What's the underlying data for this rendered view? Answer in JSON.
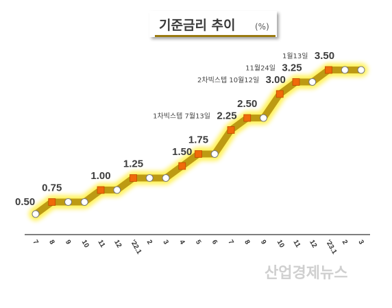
{
  "title": "기준금리 추이",
  "unit": "(%)",
  "watermark": "산업경제뉴스",
  "colors": {
    "line": "#bd9a13",
    "glow": "#fff04a",
    "hike_marker": "#f06a0a",
    "hold_marker": "#ffffff",
    "title_underline": "#9a7a10",
    "axis": "#333333"
  },
  "chart_data": {
    "type": "line",
    "title": "기준금리 추이",
    "ylabel": "(%)",
    "xlabel": "",
    "x": [
      "7",
      "8",
      "9",
      "10",
      "11",
      "12",
      "'22.1",
      "2",
      "3",
      "4",
      "5",
      "6",
      "7",
      "8",
      "9",
      "10",
      "11",
      "12",
      "'23.1",
      "2",
      "3"
    ],
    "values": [
      0.5,
      0.75,
      0.75,
      0.75,
      1.0,
      1.0,
      1.25,
      1.25,
      1.25,
      1.5,
      1.75,
      1.75,
      2.25,
      2.5,
      2.5,
      3.0,
      3.25,
      3.25,
      3.5,
      3.5,
      3.5
    ],
    "markers": [
      "hold",
      "hike",
      "hold",
      "hold",
      "hike",
      "hold",
      "hike",
      "hold",
      "hold",
      "hike",
      "hike",
      "hold",
      "hike",
      "hike",
      "hold",
      "hike",
      "hike",
      "hold",
      "hike",
      "hold",
      "hold"
    ],
    "ylim": [
      0.5,
      3.5
    ],
    "grid": false,
    "legend": "none",
    "value_labels": [
      {
        "index": 0,
        "text": "0.50"
      },
      {
        "index": 1,
        "text": "0.75"
      },
      {
        "index": 4,
        "text": "1.00"
      },
      {
        "index": 6,
        "text": "1.25"
      },
      {
        "index": 9,
        "text": "1.50"
      },
      {
        "index": 10,
        "text": "1.75"
      },
      {
        "index": 12,
        "text": "2.25",
        "note": "1차빅스텝 7월13일"
      },
      {
        "index": 13,
        "text": "2.50"
      },
      {
        "index": 15,
        "text": "3.00",
        "note": "2차빅스텝 10월12일"
      },
      {
        "index": 16,
        "text": "3.25",
        "note": "11월24일"
      },
      {
        "index": 18,
        "text": "3.50",
        "note": "1월13일"
      }
    ]
  }
}
